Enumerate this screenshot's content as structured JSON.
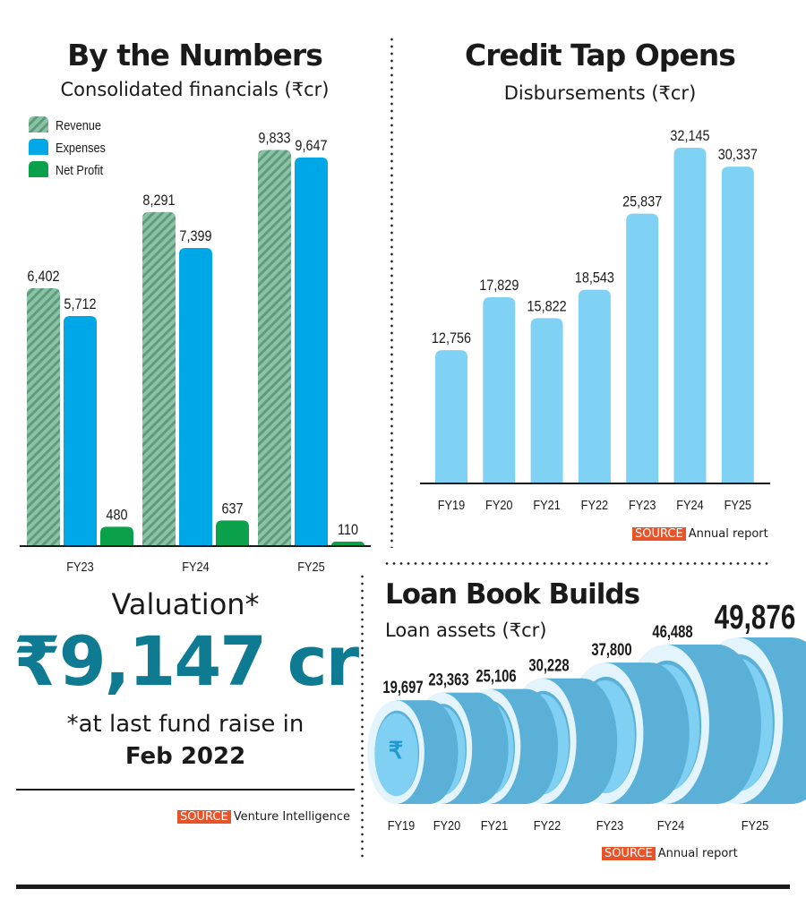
{
  "colors": {
    "revenue": "#7fb79a",
    "revenue_stripe": "#5f9c7d",
    "expenses": "#00a7e6",
    "net_profit": "#0aa14a",
    "disbursement": "#80d2f4",
    "coin_face": "#7fd0f2",
    "coin_rim": "#e4f4fc",
    "coin_side": "#5ab0d6",
    "valuation": "#0f7b93",
    "source_tag": "#e8542a"
  },
  "chart_data": [
    {
      "type": "bar",
      "title": "By the Numbers",
      "subtitle": "Consolidated financials (₹cr)",
      "categories": [
        "FY23",
        "FY24",
        "FY25"
      ],
      "series": [
        {
          "name": "Revenue",
          "values": [
            6402,
            8291,
            9833
          ],
          "labels": [
            "6,402",
            "8,291",
            "9,833"
          ]
        },
        {
          "name": "Expenses",
          "values": [
            5712,
            7399,
            9647
          ],
          "labels": [
            "5,712",
            "7,399",
            "9,647"
          ]
        },
        {
          "name": "Net Profit",
          "values": [
            480,
            637,
            110
          ],
          "labels": [
            "480",
            "637",
            "110"
          ]
        }
      ],
      "ylim": [
        0,
        10000
      ],
      "legend": "top-left",
      "grid": false
    },
    {
      "type": "bar",
      "title": "Credit Tap Opens",
      "subtitle": "Disbursements (₹cr)",
      "categories": [
        "FY19",
        "FY20",
        "FY21",
        "FY22",
        "FY23",
        "FY24",
        "FY25"
      ],
      "values": [
        12756,
        17829,
        15822,
        18543,
        25837,
        32145,
        30337
      ],
      "labels": [
        "12,756",
        "17,829",
        "15,822",
        "18,543",
        "25,837",
        "32,145",
        "30,337"
      ],
      "ylim": [
        0,
        33000
      ],
      "grid": false,
      "source_tag": "SOURCE",
      "source": "Annual report"
    },
    {
      "type": "bar",
      "style": "coins",
      "title": "Loan Book Builds",
      "subtitle": "Loan assets (₹cr)",
      "categories": [
        "FY19",
        "FY20",
        "FY21",
        "FY22",
        "FY23",
        "FY24",
        "FY25"
      ],
      "values": [
        19697,
        23363,
        25106,
        30228,
        37800,
        46488,
        49876
      ],
      "labels": [
        "19,697",
        "23,363",
        "25,106",
        "30,228",
        "37,800",
        "46,488",
        "49,876"
      ],
      "source_tag": "SOURCE",
      "source": "Annual report"
    }
  ],
  "valuation": {
    "label": "Valuation*",
    "value": "₹9,147 cr",
    "note": "*at last fund raise in",
    "date": "Feb 2022",
    "source_tag": "SOURCE",
    "source": "Venture Intelligence"
  }
}
